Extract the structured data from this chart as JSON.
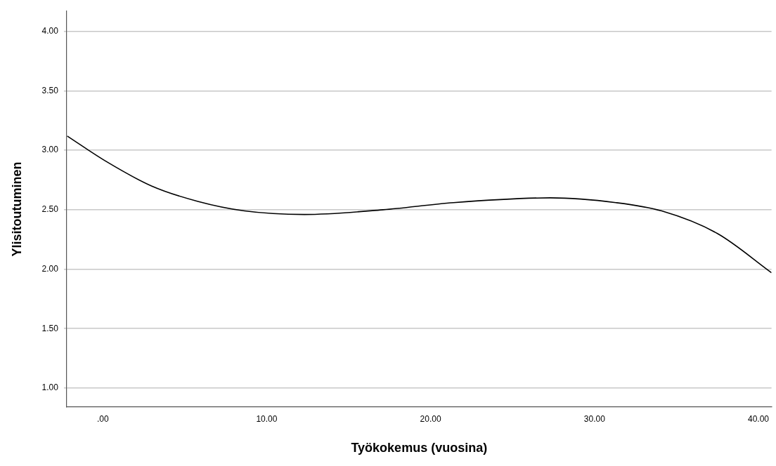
{
  "chart_data": {
    "type": "line",
    "xlabel": "Työkokemus (vuosina)",
    "ylabel": "Ylisitoutuminen",
    "x": [
      -2.17,
      0.16,
      2.97,
      5.8,
      8.65,
      12.3,
      17.1,
      21.4,
      27.3,
      31.3,
      34.1,
      37.5,
      40.8
    ],
    "series": [
      {
        "color": "#000000",
        "values": [
          3.12,
          2.91,
          2.7,
          2.57,
          2.49,
          2.46,
          2.5,
          2.56,
          2.6,
          2.56,
          2.49,
          2.3,
          1.97
        ]
      }
    ],
    "xlim": [
      -2.2,
      40.8
    ],
    "ylim": [
      0.84,
      4.17
    ],
    "xticks": [
      {
        "value": 0,
        "label": ".00"
      },
      {
        "value": 10,
        "label": "10.00"
      },
      {
        "value": 20,
        "label": "20.00"
      },
      {
        "value": 30,
        "label": "30.00"
      },
      {
        "value": 40,
        "label": "40.00"
      }
    ],
    "yticks": [
      {
        "value": 1,
        "label": "1.00"
      },
      {
        "value": 1.5,
        "label": "1.50"
      },
      {
        "value": 2,
        "label": "2.00"
      },
      {
        "value": 2.5,
        "label": "2.50"
      },
      {
        "value": 3,
        "label": "3.00"
      },
      {
        "value": 3.5,
        "label": "3.50"
      },
      {
        "value": 4,
        "label": "4.00"
      }
    ],
    "grid": "y",
    "legend": false,
    "marker": "none",
    "line_style": "solid"
  }
}
